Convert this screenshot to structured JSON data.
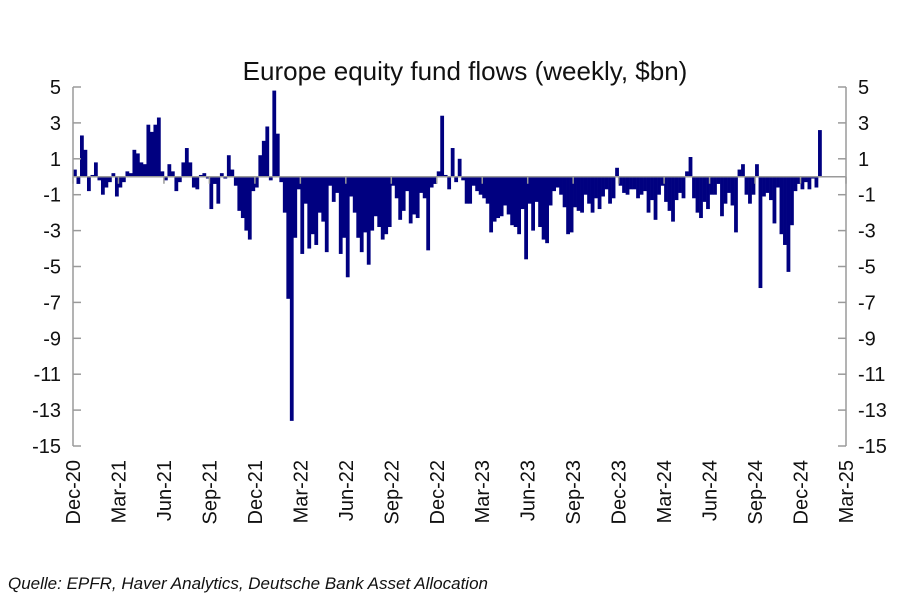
{
  "chart_data": {
    "type": "bar",
    "title": "Europe equity fund flows (weekly, $bn)",
    "xlabel": "",
    "ylabel": "",
    "ylim": [
      -15,
      5
    ],
    "yticks": [
      5,
      3,
      1,
      -1,
      -3,
      -5,
      -7,
      -9,
      -11,
      -13,
      -15
    ],
    "xtick_labels": [
      "Dec-20",
      "Mar-21",
      "Jun-21",
      "Sep-21",
      "Dec-21",
      "Mar-22",
      "Jun-22",
      "Sep-22",
      "Dec-22",
      "Mar-23",
      "Jun-23",
      "Sep-23",
      "Dec-23",
      "Mar-24",
      "Jun-24",
      "Sep-24",
      "Dec-24",
      "Mar-25"
    ],
    "frequency": "weekly",
    "bar_color": "#000080",
    "values": [
      0.4,
      -0.4,
      2.3,
      1.5,
      -0.8,
      0.1,
      0.8,
      -0.2,
      -1.0,
      -0.6,
      -0.3,
      0.2,
      -1.1,
      -0.6,
      -0.3,
      0.3,
      0.2,
      1.5,
      1.3,
      0.8,
      0.7,
      2.9,
      2.5,
      2.9,
      3.3,
      0.3,
      -0.2,
      0.7,
      0.3,
      -0.8,
      -0.3,
      0.8,
      1.6,
      0.8,
      -0.6,
      -0.7,
      0.1,
      0.2,
      -0.1,
      -1.8,
      -0.4,
      -1.5,
      0.2,
      -0.1,
      1.2,
      0.4,
      -0.5,
      -1.9,
      -2.3,
      -3.0,
      -3.5,
      -0.8,
      -0.6,
      1.2,
      2.0,
      2.8,
      -0.2,
      4.8,
      2.4,
      -0.3,
      -2.0,
      -6.8,
      -13.6,
      -3.4,
      -0.7,
      -4.3,
      -1.5,
      -4.0,
      -3.2,
      -3.8,
      -2.0,
      -2.5,
      -4.2,
      -0.5,
      -1.4,
      -0.9,
      -4.3,
      -3.4,
      -5.6,
      -1.1,
      -2.0,
      -3.4,
      -4.2,
      -3.1,
      -4.9,
      -3.0,
      -2.2,
      -2.8,
      -3.5,
      -3.2,
      -2.8,
      -0.5,
      -1.2,
      -2.4,
      -1.9,
      -0.8,
      -2.6,
      -2.1,
      -2.3,
      -0.9,
      -1.2,
      -4.1,
      -0.6,
      -0.4,
      0.3,
      3.4,
      0.1,
      -0.7,
      1.6,
      -0.3,
      1.0,
      -0.2,
      -1.5,
      -1.5,
      -0.5,
      -0.8,
      -1.0,
      -1.2,
      -1.5,
      -3.1,
      -2.5,
      -2.3,
      -2.2,
      -1.6,
      -2.1,
      -2.7,
      -2.8,
      -3.2,
      -1.8,
      -4.6,
      -1.5,
      -3.0,
      -1.4,
      -2.8,
      -3.5,
      -3.7,
      -1.6,
      -0.8,
      -0.6,
      -1.0,
      -1.7,
      -3.2,
      -3.1,
      -1.7,
      -1.9,
      -2.0,
      -1.0,
      -1.5,
      -2.0,
      -1.2,
      -1.8,
      -1.1,
      -0.7,
      -1.5,
      -1.2,
      0.5,
      -0.5,
      -0.9,
      -1.0,
      -0.7,
      -0.7,
      -1.2,
      -1.0,
      -0.8,
      -2.0,
      -1.3,
      -2.4,
      -1.0,
      -0.5,
      -1.4,
      -1.9,
      -2.5,
      -1.3,
      -0.9,
      -1.2,
      0.3,
      1.1,
      -1.2,
      -2.0,
      -2.3,
      -1.4,
      -1.8,
      -1.0,
      -1.0,
      -0.4,
      -2.2,
      -1.5,
      -0.9,
      -1.6,
      -3.1,
      0.4,
      0.7,
      -1.0,
      -1.5,
      -1.0,
      0.7,
      -6.2,
      -1.1,
      -0.9,
      -1.3,
      -2.6,
      -0.6,
      -3.2,
      -3.8,
      -5.3,
      -2.7,
      -0.8,
      -0.4,
      -0.7,
      -0.3,
      -0.7,
      -0.1,
      -0.6,
      2.6
    ],
    "grid": false,
    "legend": "none"
  },
  "source": "Quelle: EPFR, Haver Analytics, Deutsche Bank Asset Allocation"
}
